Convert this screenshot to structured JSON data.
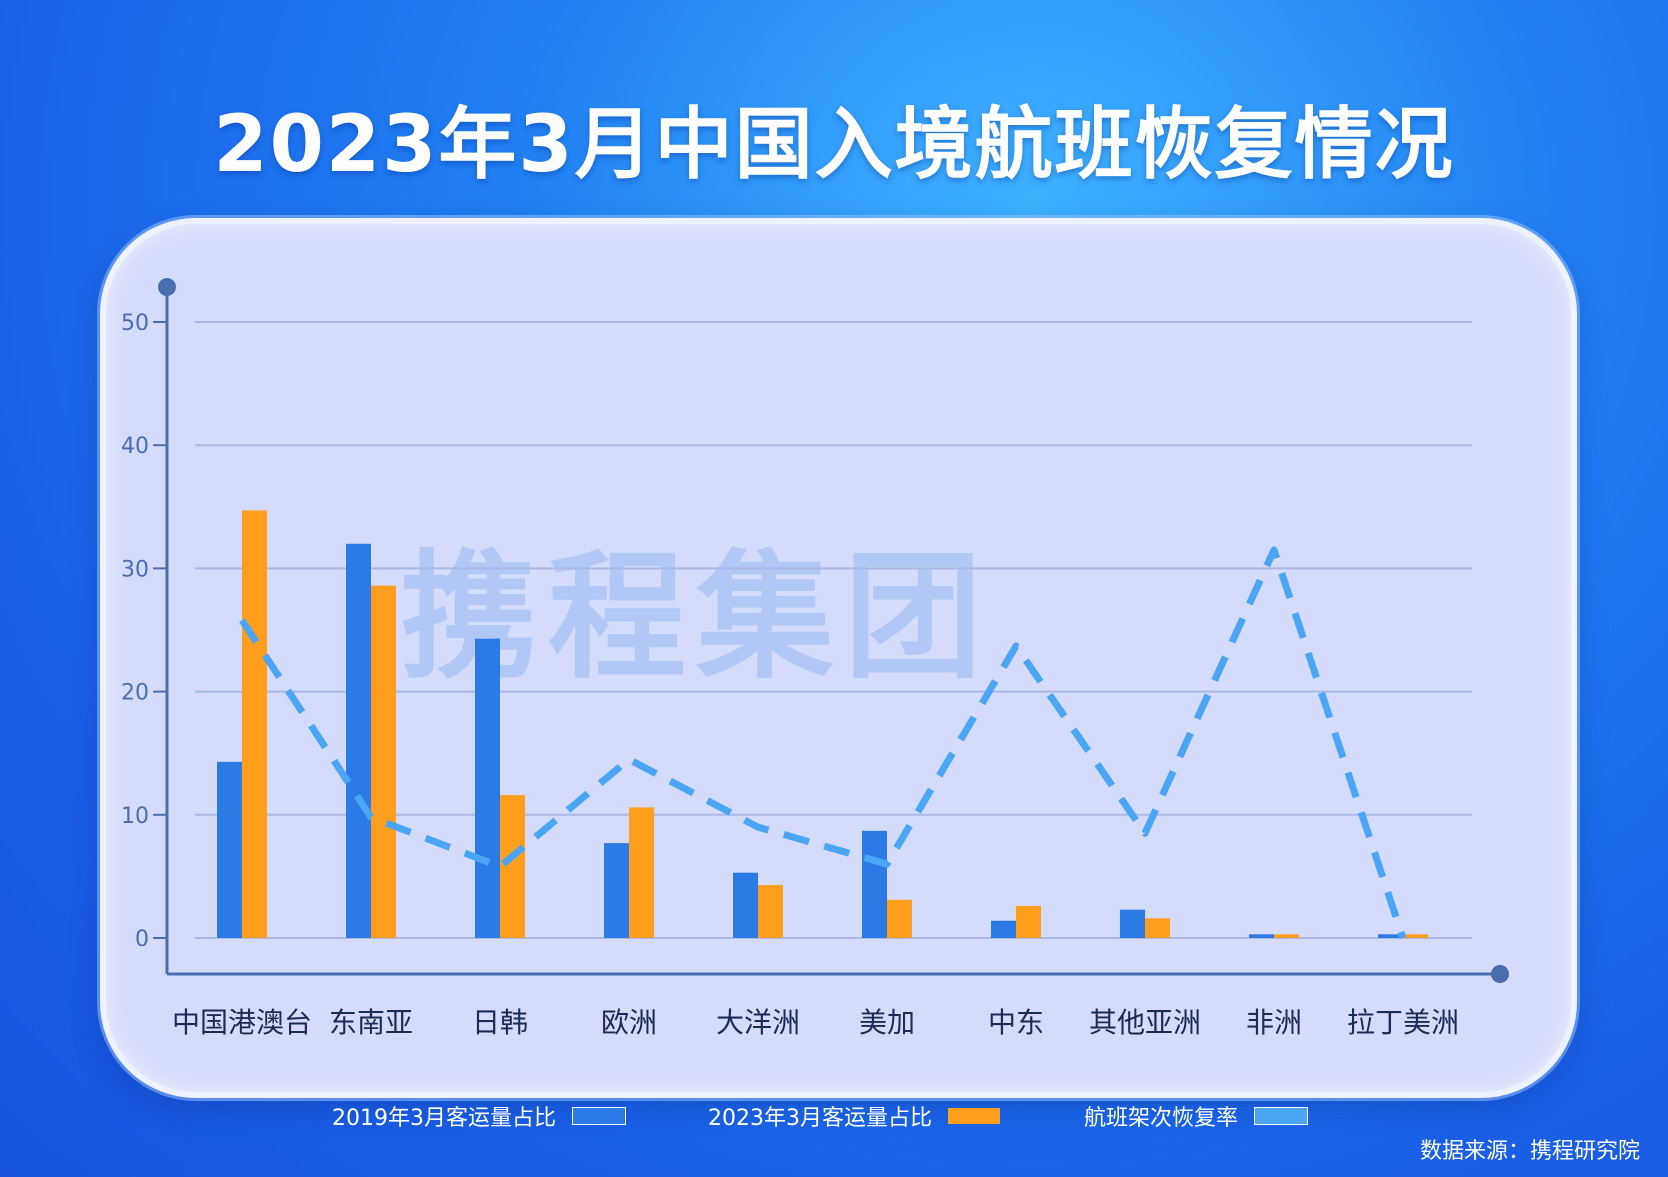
{
  "title": "2023年3月中国入境航班恢复情况",
  "watermark": "携程集团",
  "source": "数据来源：携程研究院",
  "colors": {
    "bar2019": "#2b7ae6",
    "bar2023": "#ff9e1c",
    "line": "#4aa6f5",
    "axis": "#4a6db0",
    "grid": "#a9b8e6"
  },
  "legend": [
    {
      "label": "2019年3月客运量占比",
      "color": "#2b7ae6"
    },
    {
      "label": "2023年3月客运量占比",
      "color": "#ff9e1c"
    },
    {
      "label": "航班架次恢复率",
      "color": "#4aa6f5"
    }
  ],
  "chart_data": {
    "type": "bar",
    "categories": [
      "中国港澳台",
      "东南亚",
      "日韩",
      "欧洲",
      "大洋洲",
      "美加",
      "中东",
      "其他亚洲",
      "非洲",
      "拉丁美洲"
    ],
    "series": [
      {
        "name": "2019年3月客运量占比",
        "type": "bar",
        "values": [
          14.3,
          32.0,
          24.3,
          7.7,
          5.3,
          8.7,
          1.4,
          2.3,
          0.3,
          0.3
        ]
      },
      {
        "name": "2023年3月客运量占比",
        "type": "bar",
        "values": [
          34.7,
          28.6,
          11.6,
          10.6,
          4.3,
          3.1,
          2.6,
          1.6,
          0.3,
          0.3
        ]
      },
      {
        "name": "航班架次恢复率",
        "type": "line",
        "style": "dashed",
        "values": [
          25.8,
          9.8,
          5.8,
          14.5,
          9.0,
          6.0,
          23.7,
          8.5,
          31.5,
          0.0
        ]
      }
    ],
    "y_ticks": [
      "0",
      "10",
      "20",
      "30",
      "40",
      "50"
    ],
    "ylim": [
      0,
      50
    ],
    "grid": true,
    "legend_position": "bottom"
  }
}
